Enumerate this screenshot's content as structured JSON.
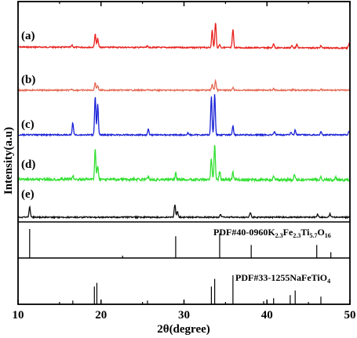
{
  "chart_data": {
    "type": "line",
    "xlabel": "2θ(degree)",
    "ylabel": "Intensity(a.u)",
    "xlim": [
      10,
      50
    ],
    "x_ticks": [
      10,
      20,
      30,
      40,
      50
    ],
    "grid": false,
    "series": [
      {
        "name": "(a)",
        "color": "#e8231f",
        "baseline": 0.05,
        "peaks": [
          [
            16.5,
            0.06
          ],
          [
            19.3,
            0.42
          ],
          [
            19.6,
            0.28
          ],
          [
            25.6,
            0.04
          ],
          [
            33.4,
            0.55
          ],
          [
            33.8,
            0.82
          ],
          [
            34.3,
            0.1
          ],
          [
            35.9,
            0.58
          ],
          [
            40.8,
            0.14
          ],
          [
            43.0,
            0.07
          ],
          [
            43.6,
            0.1
          ],
          [
            46.5,
            0.07
          ],
          [
            49.9,
            0.12
          ]
        ]
      },
      {
        "name": "(b)",
        "color": "#e66a55",
        "baseline": 0.0,
        "peaks": [
          [
            16.5,
            0.03
          ],
          [
            19.3,
            0.33
          ],
          [
            19.6,
            0.2
          ],
          [
            25.6,
            0.02
          ],
          [
            33.4,
            0.25
          ],
          [
            33.8,
            0.42
          ],
          [
            35.9,
            0.12
          ],
          [
            40.8,
            0.06
          ],
          [
            43.2,
            0.05
          ],
          [
            46.5,
            0.03
          ]
        ]
      },
      {
        "name": "(c)",
        "color": "#1a22d6",
        "baseline": 0.0,
        "peaks": [
          [
            16.6,
            0.3
          ],
          [
            19.3,
            0.95
          ],
          [
            19.6,
            0.75
          ],
          [
            25.7,
            0.15
          ],
          [
            30.5,
            0.05
          ],
          [
            33.3,
            0.95
          ],
          [
            33.7,
            1.0
          ],
          [
            35.9,
            0.22
          ],
          [
            40.9,
            0.08
          ],
          [
            42.9,
            0.07
          ],
          [
            43.4,
            0.12
          ],
          [
            46.5,
            0.08
          ],
          [
            49.9,
            0.1
          ]
        ]
      },
      {
        "name": "(d)",
        "color": "#33e033",
        "baseline": 0.03,
        "peaks": [
          [
            16.6,
            0.1
          ],
          [
            19.3,
            0.75
          ],
          [
            19.6,
            0.35
          ],
          [
            25.7,
            0.08
          ],
          [
            29.0,
            0.15
          ],
          [
            33.3,
            0.55
          ],
          [
            33.7,
            0.88
          ],
          [
            34.3,
            0.2
          ],
          [
            35.9,
            0.18
          ],
          [
            40.8,
            0.1
          ],
          [
            43.3,
            0.12
          ],
          [
            46.5,
            0.06
          ],
          [
            48.3,
            0.08
          ]
        ]
      },
      {
        "name": "(e)",
        "color": "#111111",
        "baseline": 0.0,
        "peaks": [
          [
            11.4,
            0.45
          ],
          [
            28.9,
            0.55
          ],
          [
            29.2,
            0.25
          ],
          [
            34.4,
            0.12
          ],
          [
            38.0,
            0.2
          ],
          [
            46.1,
            0.12
          ],
          [
            47.6,
            0.14
          ]
        ]
      }
    ],
    "references": [
      {
        "label_prefix": "PDF#40-0960K",
        "label_parts": [
          {
            "text": "PDF#40-0960K",
            "sub": false
          },
          {
            "text": "2.3",
            "sub": true
          },
          {
            "text": "Fe",
            "sub": false
          },
          {
            "text": "2.3",
            "sub": true
          },
          {
            "text": "Ti",
            "sub": false
          },
          {
            "text": "5.7",
            "sub": true
          },
          {
            "text": "O",
            "sub": false
          },
          {
            "text": "16",
            "sub": true
          }
        ],
        "lines": [
          [
            11.4,
            1.0
          ],
          [
            22.6,
            0.08
          ],
          [
            29.0,
            0.75
          ],
          [
            34.3,
            0.85
          ],
          [
            38.1,
            0.45
          ],
          [
            46.0,
            0.45
          ],
          [
            47.7,
            0.2
          ]
        ]
      },
      {
        "label_parts": [
          {
            "text": "PDF#33-1255NaFeTiO",
            "sub": false
          },
          {
            "text": "4",
            "sub": true
          }
        ],
        "lines": [
          [
            16.6,
            0.12
          ],
          [
            19.2,
            0.58
          ],
          [
            19.5,
            0.7
          ],
          [
            25.6,
            0.12
          ],
          [
            33.3,
            0.58
          ],
          [
            33.7,
            0.83
          ],
          [
            35.9,
            0.95
          ],
          [
            39.6,
            0.1
          ],
          [
            40.8,
            0.2
          ],
          [
            42.8,
            0.3
          ],
          [
            43.4,
            0.45
          ],
          [
            46.5,
            0.25
          ]
        ]
      }
    ]
  }
}
